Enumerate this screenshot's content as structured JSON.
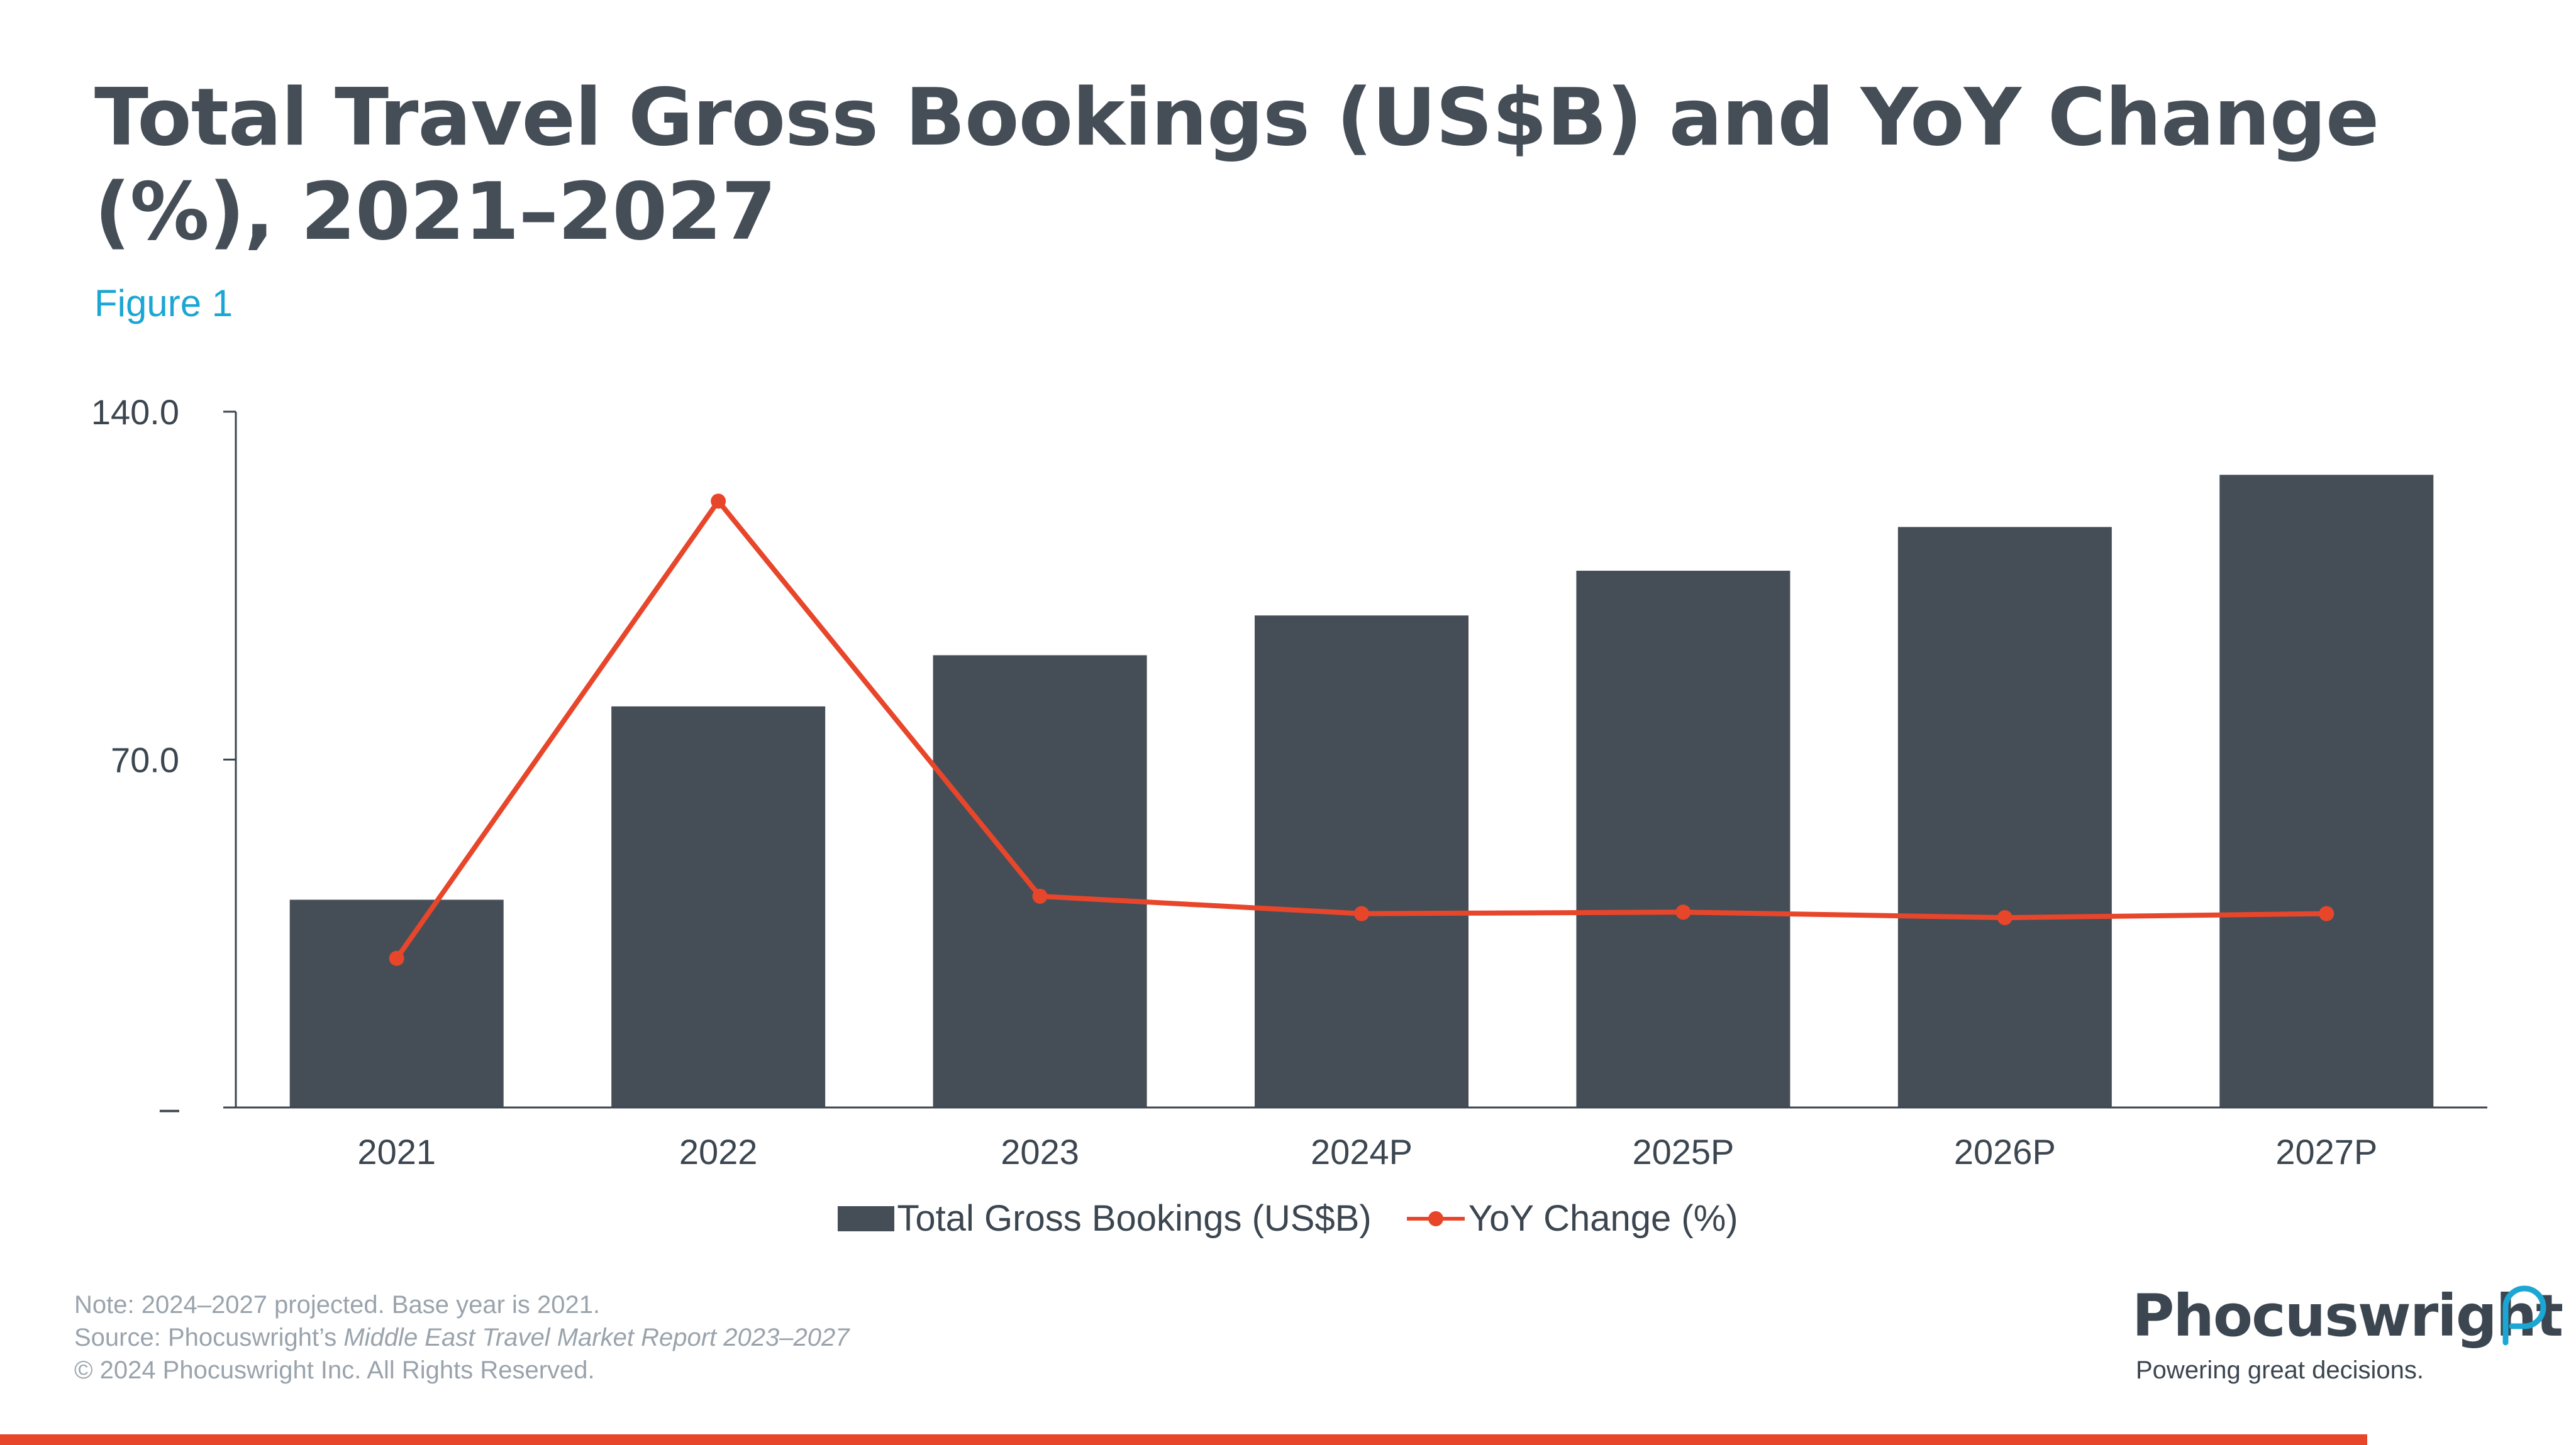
{
  "title": "Total Travel Gross Bookings (US$B) and YoY Change (%), 2021–2027",
  "subtitle": "Figure 1",
  "colors": {
    "bar": "#454e57",
    "line": "#e8462b",
    "accent": "#1ba6d4",
    "rule": "#e8462b"
  },
  "chart_data": {
    "type": "bar",
    "categories": [
      "2021",
      "2022",
      "2023",
      "2024P",
      "2025P",
      "2026P",
      "2027P"
    ],
    "series": [
      {
        "name": "Total Gross Bookings (US$B)",
        "type": "bar",
        "values": [
          41.8,
          80.7,
          91.0,
          99.0,
          108.0,
          116.8,
          127.3
        ]
      },
      {
        "name": "YoY Change (%)",
        "type": "line",
        "values": [
          30.0,
          122.0,
          42.5,
          39.0,
          39.3,
          38.2,
          39.0
        ]
      }
    ],
    "ylim": [
      0,
      140
    ],
    "y_tick_labels": [
      "–",
      "70.0",
      "140.0"
    ],
    "y_tick_values": [
      0,
      70,
      140
    ],
    "grid": false,
    "legend": "bottom-center"
  },
  "legend": {
    "bar_label": "Total Gross Bookings (US$B)",
    "line_label": "YoY Change (%)"
  },
  "footer": {
    "note": "Note: 2024–2027 projected. Base year is 2021.",
    "source_prefix": "Source: Phocuswright’s ",
    "source_title": "Middle East Travel Market Report 2023–2027",
    "copyright": "© 2024 Phocuswright Inc. All Rights Reserved."
  },
  "logo": {
    "name": "Phocuswright",
    "tagline": "Powering great decisions."
  }
}
